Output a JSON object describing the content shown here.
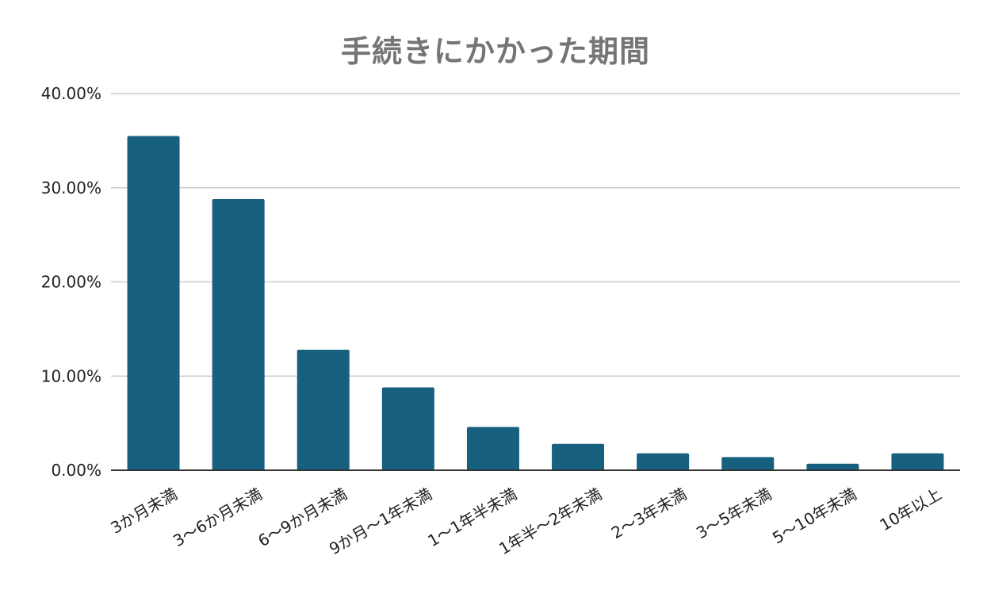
{
  "colors": {
    "bar": "#17607f",
    "grid": "#cccccc",
    "axis": "#333333",
    "title": "#757575",
    "text": "#222222"
  },
  "chart_data": {
    "type": "bar",
    "title": "手続きにかかった期間",
    "xlabel": "",
    "ylabel": "",
    "ylim": [
      0,
      40
    ],
    "yticks": [
      0,
      10,
      20,
      30,
      40
    ],
    "ytick_labels": [
      "0.00%",
      "10.00%",
      "20.00%",
      "30.00%",
      "40.00%"
    ],
    "grid": true,
    "legend": "none",
    "categories": [
      "3か月未満",
      "3～6か月未満",
      "6～9か月未満",
      "9か月～1年未満",
      "1～1年半未満",
      "1年半～2年未満",
      "2～3年未満",
      "3～5年未満",
      "5～10年未満",
      "10年以上"
    ],
    "values": [
      35.5,
      28.8,
      12.8,
      8.8,
      4.6,
      2.8,
      1.8,
      1.4,
      0.7,
      1.8
    ]
  }
}
